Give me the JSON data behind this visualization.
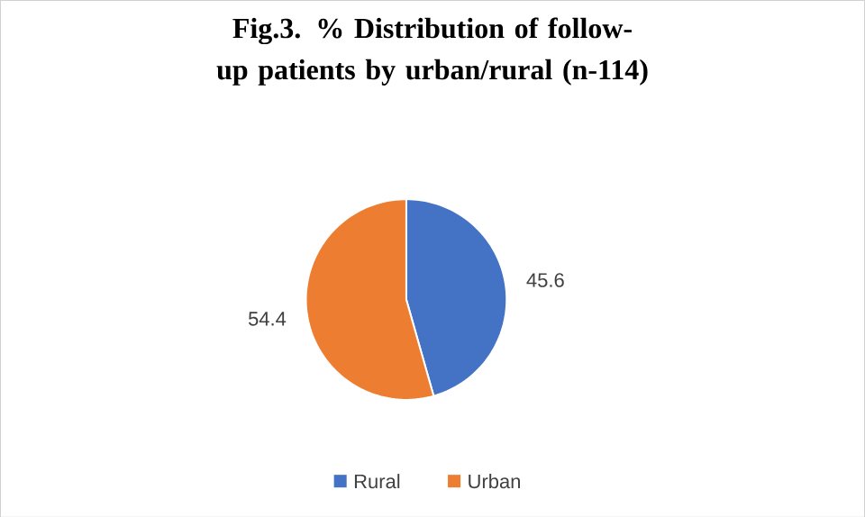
{
  "chart_data": {
    "type": "pie",
    "title": "Fig.3. % Distribution of follow-up patients by urban/rural (n-114)",
    "categories": [
      "Rural",
      "Urban"
    ],
    "values": [
      45.6,
      54.4
    ],
    "colors": [
      "#4472c4",
      "#ed7d31"
    ],
    "data_labels": true,
    "legend": "bottom"
  }
}
